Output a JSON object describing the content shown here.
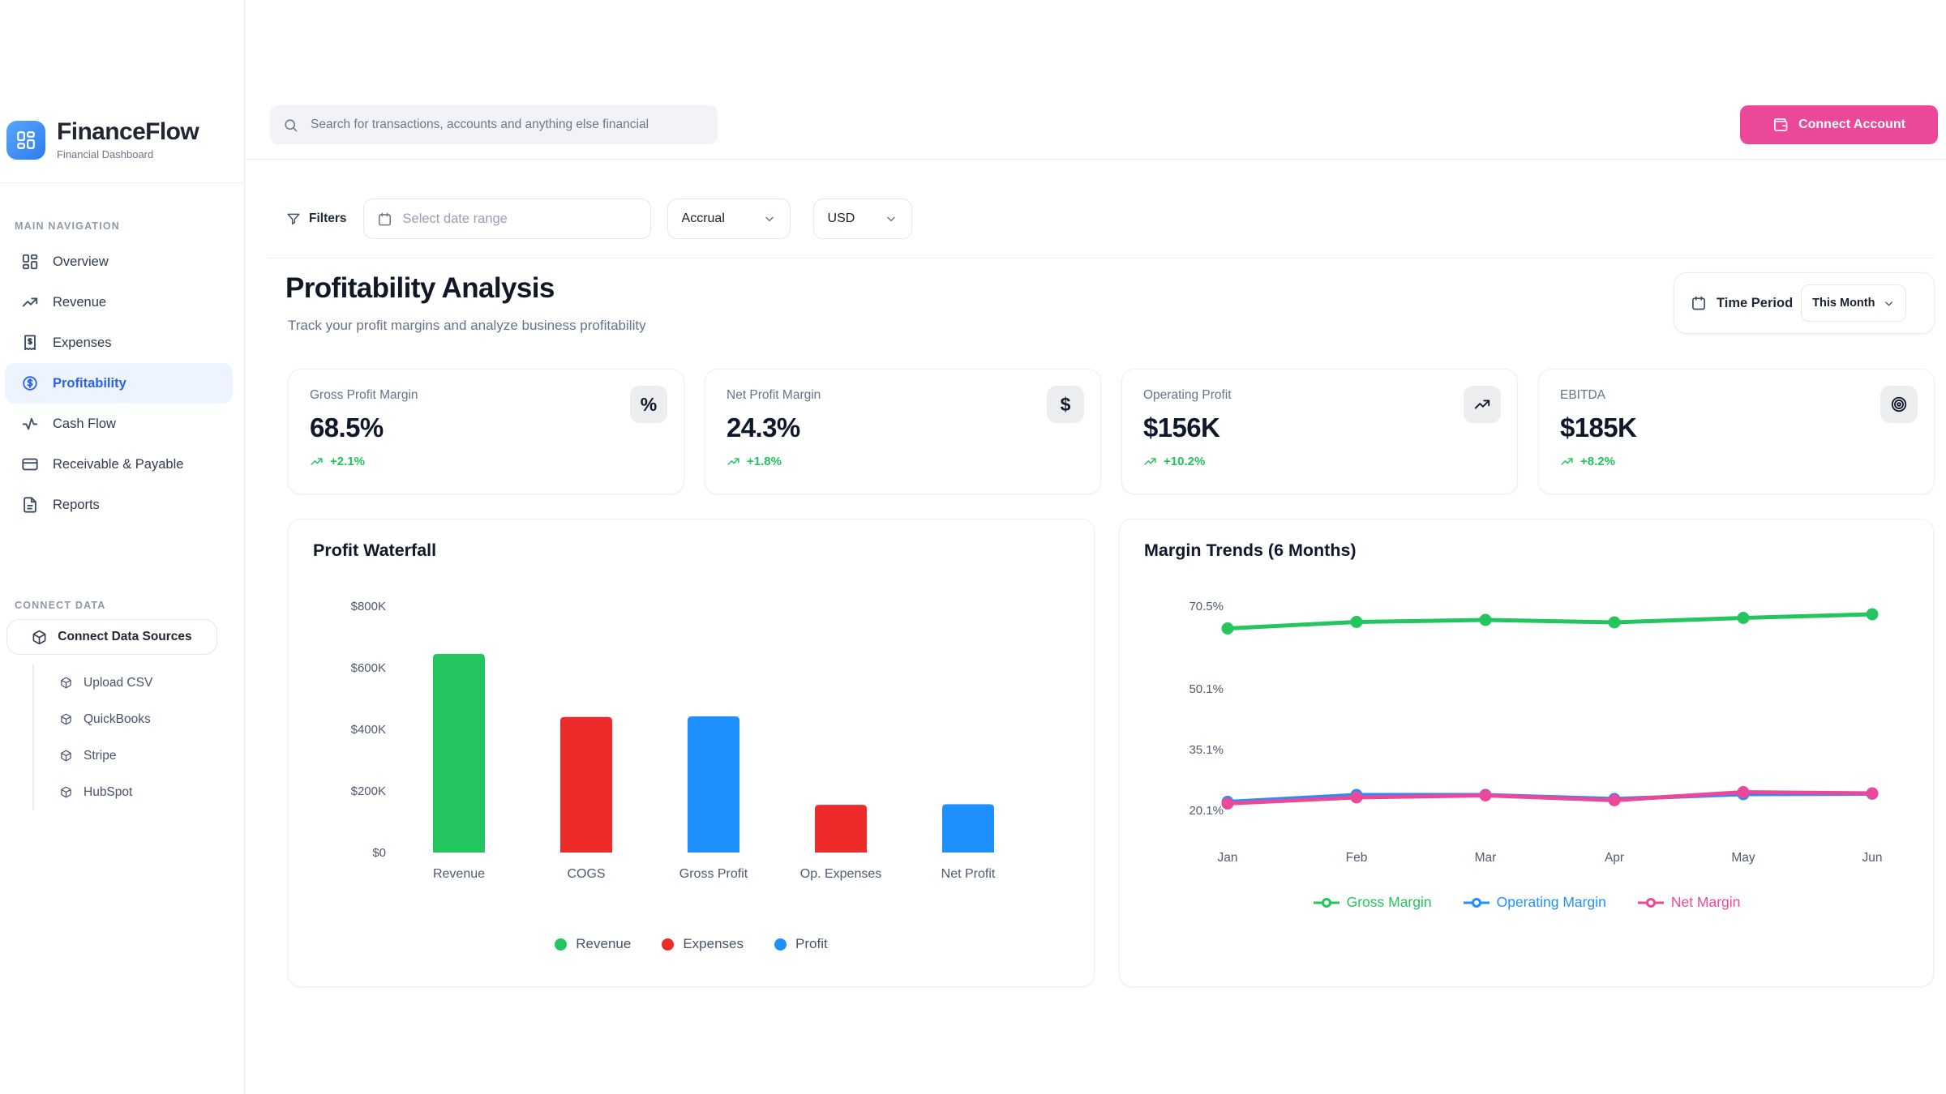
{
  "brand": {
    "name": "FinanceFlow",
    "tagline": "Financial Dashboard",
    "logo_icon": "dashboard-grid-icon",
    "logo_color": "#3D8BF8"
  },
  "header": {
    "search_placeholder": "Search for transactions, accounts and anything else financial",
    "search_icon": "search-icon",
    "connect_account_label": "Connect Account",
    "connect_account_icon": "wallet-icon",
    "connect_account_color": "#EC4899"
  },
  "sidebar": {
    "main_nav_title": "MAIN NAVIGATION",
    "items": [
      {
        "label": "Overview",
        "icon": "dashboard-grid-icon",
        "active": false
      },
      {
        "label": "Revenue",
        "icon": "trending-up-icon",
        "active": false
      },
      {
        "label": "Expenses",
        "icon": "receipt-icon",
        "active": false
      },
      {
        "label": "Profitability",
        "icon": "circle-dollar-icon",
        "active": true
      },
      {
        "label": "Cash Flow",
        "icon": "activity-icon",
        "active": false
      },
      {
        "label": "Receivable & Payable",
        "icon": "credit-card-icon",
        "active": false
      },
      {
        "label": "Reports",
        "icon": "file-text-icon",
        "active": false
      }
    ],
    "connect_section_title": "CONNECT DATA",
    "connect_button": {
      "label": "Connect Data Sources",
      "icon": "cube-icon"
    },
    "data_sources": [
      {
        "label": "Upload CSV",
        "icon": "cube-icon"
      },
      {
        "label": "QuickBooks",
        "icon": "cube-icon"
      },
      {
        "label": "Stripe",
        "icon": "cube-icon"
      },
      {
        "label": "HubSpot",
        "icon": "cube-icon"
      }
    ]
  },
  "filters": {
    "label": "Filters",
    "icon": "funnel-icon",
    "date_range_placeholder": "Select date range",
    "accounting_basis": "Accrual",
    "currency": "USD"
  },
  "page": {
    "title": "Profitability Analysis",
    "subtitle": "Track your profit margins and analyze business profitability",
    "time_period_label": "Time Period",
    "time_period_value": "This Month"
  },
  "kpis": [
    {
      "label": "Gross Profit Margin",
      "value": "68.5%",
      "delta": "+2.1%",
      "icon": "percent-icon"
    },
    {
      "label": "Net Profit Margin",
      "value": "24.3%",
      "delta": "+1.8%",
      "icon": "dollar-icon"
    },
    {
      "label": "Operating Profit",
      "value": "$156K",
      "delta": "+10.2%",
      "icon": "trending-up-icon"
    },
    {
      "label": "EBITDA",
      "value": "$185K",
      "delta": "+8.2%",
      "icon": "target-icon"
    }
  ],
  "colors": {
    "accent_pink": "#EC4899",
    "active_blue": "#2A62E8",
    "green": "#22C55E",
    "red": "#EE2B2B",
    "chart_blue": "#1E90FF",
    "delta_green": "#1FC35B",
    "text_dark": "#0F172A",
    "text_gray": "#64748B",
    "axis_text": "#4F5B6E"
  },
  "chart_data": [
    {
      "type": "bar",
      "title": "Profit Waterfall",
      "categories": [
        "Revenue",
        "COGS",
        "Gross Profit",
        "Op. Expenses",
        "Net Profit"
      ],
      "values": [
        645000,
        440000,
        442000,
        155000,
        157000
      ],
      "bar_colors": [
        "#22C55E",
        "#EE2B2B",
        "#1E90FF",
        "#EE2B2B",
        "#1E90FF"
      ],
      "ylim": [
        0,
        800000
      ],
      "yticks": [
        0,
        200000,
        400000,
        600000,
        800000
      ],
      "ytick_labels": [
        "$0",
        "$200K",
        "$400K",
        "$600K",
        "$800K"
      ],
      "grid": false,
      "legend_position": "bottom",
      "legend": [
        {
          "label": "Revenue",
          "color": "#22C55E"
        },
        {
          "label": "Expenses",
          "color": "#EE2B2B"
        },
        {
          "label": "Profit",
          "color": "#1E90FF"
        }
      ]
    },
    {
      "type": "line",
      "title": "Margin Trends (6 Months)",
      "x": [
        "Jan",
        "Feb",
        "Mar",
        "Apr",
        "May",
        "Jun"
      ],
      "series": [
        {
          "name": "Gross Margin",
          "color": "#22C55E",
          "values": [
            65.0,
            66.6,
            67.1,
            66.5,
            67.6,
            68.5
          ]
        },
        {
          "name": "Operating Margin",
          "color": "#1E90FF",
          "values": [
            22.2,
            23.9,
            23.9,
            22.9,
            24.1,
            24.2
          ]
        },
        {
          "name": "Net Margin",
          "color": "#EC4899",
          "values": [
            21.8,
            23.3,
            23.8,
            22.6,
            24.6,
            24.3
          ]
        }
      ],
      "yticks": [
        70.5,
        50.1,
        35.1,
        20.1
      ],
      "ytick_labels": [
        "70.5%",
        "50.1%",
        "35.1%",
        "20.1%"
      ],
      "ylim": [
        18,
        76
      ],
      "grid": false,
      "legend_position": "bottom"
    }
  ]
}
